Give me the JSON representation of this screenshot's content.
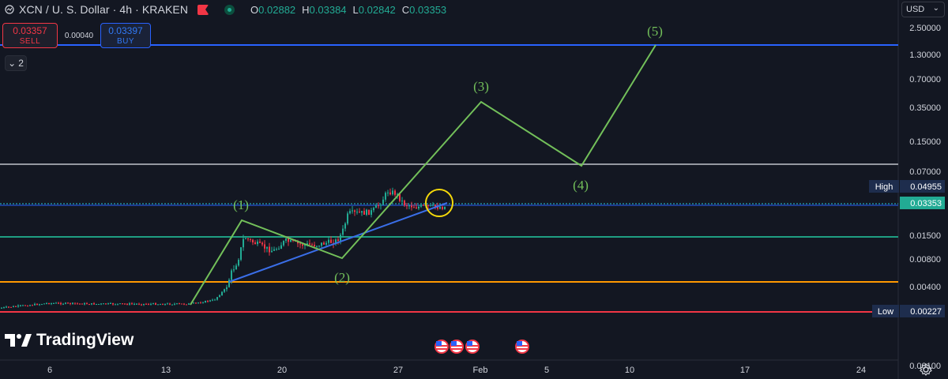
{
  "header": {
    "symbol": "XCN / U. S. Dollar · 4h · KRAKEN",
    "open_label": "O",
    "open": "0.02882",
    "high_label": "H",
    "high": "0.03384",
    "low_label": "L",
    "low": "0.02842",
    "close_label": "C",
    "close": "0.03353"
  },
  "trade": {
    "sell_price": "0.03357",
    "sell_label": "SELL",
    "spread": "0.00040",
    "buy_price": "0.03397",
    "buy_label": "BUY"
  },
  "indicators_toggle": "2",
  "currency": "USD",
  "price_axis": {
    "ticks": [
      "2.50000",
      "1.30000",
      "0.70000",
      "0.35000",
      "0.15000",
      "0.07000",
      "0.01500",
      "0.00800",
      "0.00400",
      "0.00100"
    ],
    "high_label": "High",
    "high_value": "0.04955",
    "current_value": "0.03353",
    "low_label": "Low",
    "low_value": "0.00227"
  },
  "time_axis": {
    "ticks": [
      "6",
      "13",
      "20",
      "27",
      "Feb",
      "5",
      "10",
      "17",
      "24"
    ]
  },
  "waves": [
    "(1)",
    "(2)",
    "(3)",
    "(4)",
    "(5)"
  ],
  "brand": "TradingView",
  "colors": {
    "background": "#131722",
    "up": "#22ab94",
    "down": "#f23645",
    "wave": "#73c05a",
    "trendline": "#3a6ee8",
    "level_blue": "#2962ff",
    "level_gray": "#9598a1",
    "level_cyan": "#26c6da",
    "level_green": "#1e9e82",
    "level_orange": "#ff9800",
    "level_red": "#f23645",
    "highlight_circle": "#f5d90a"
  },
  "icons": [
    "chart-type-icon",
    "flag-icon",
    "live-dot-icon",
    "chevron-down-icon",
    "tradingview-logo-icon",
    "us-flag-event-icon",
    "settings-gear-icon"
  ]
}
